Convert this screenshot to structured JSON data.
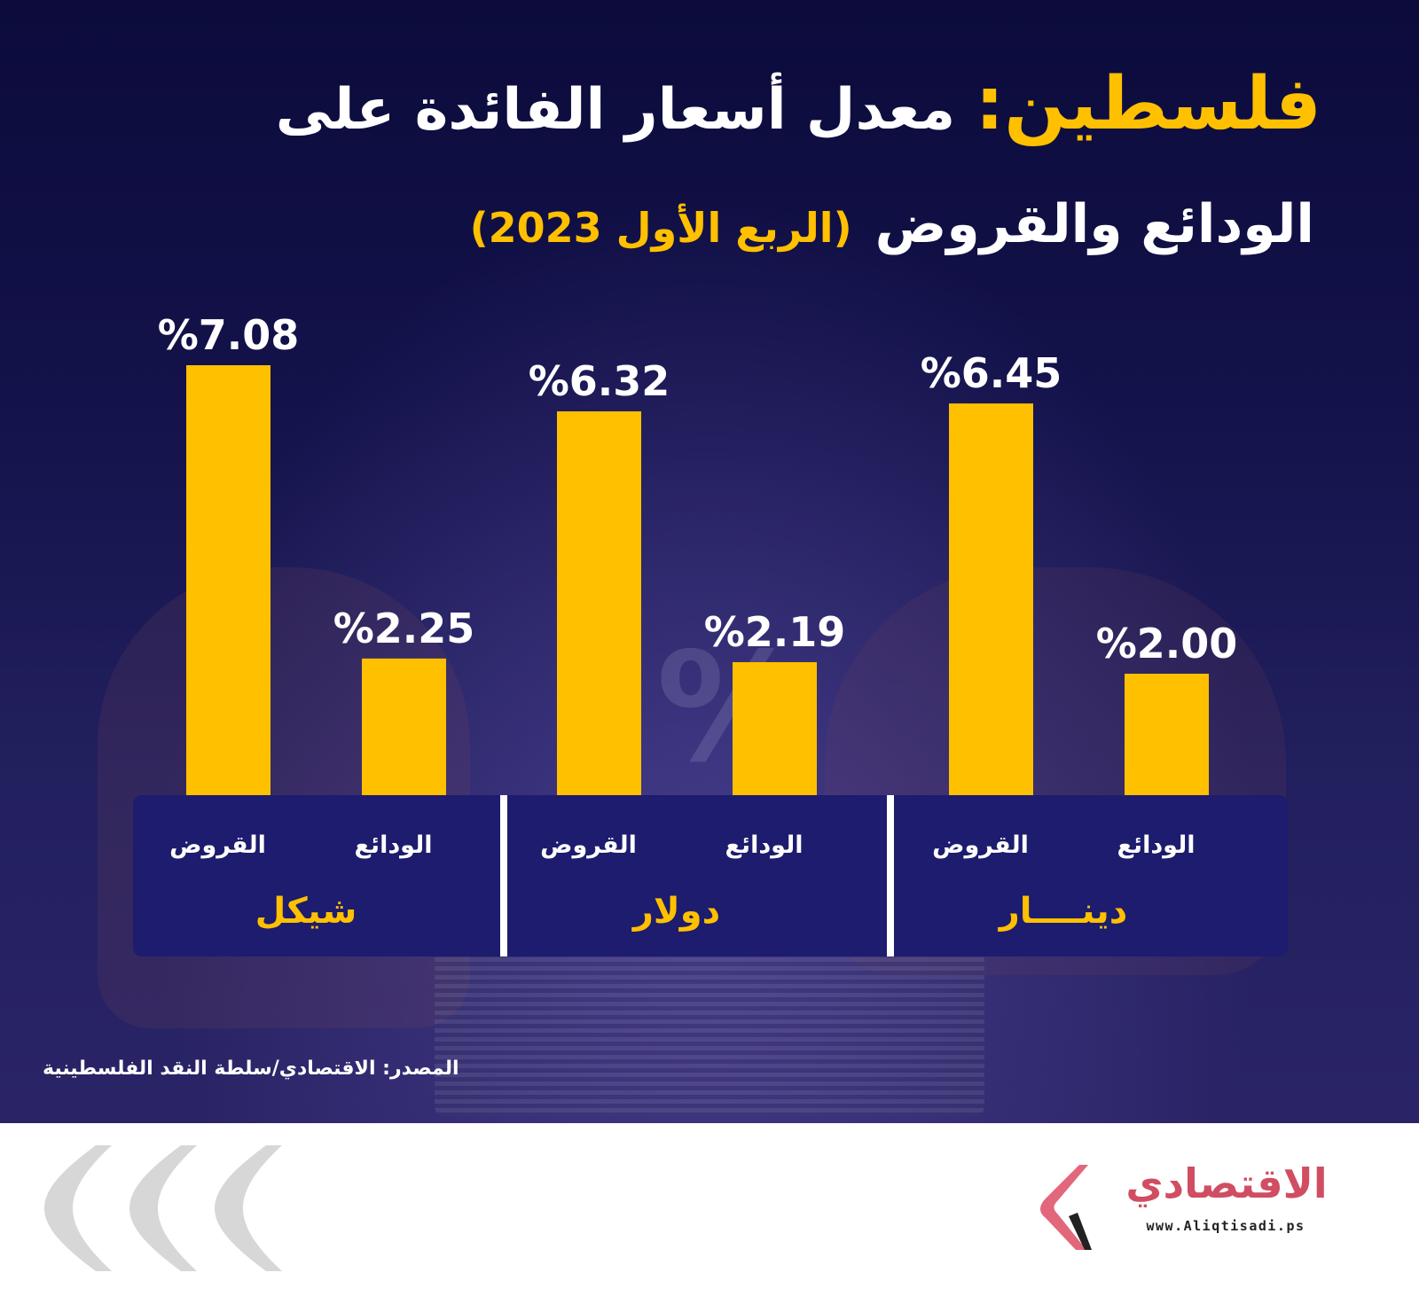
{
  "title": {
    "accent": "فلسطين:",
    "line1_rest": "معدل أسعار الفائدة على",
    "line2": "الودائع والقروض",
    "period": "(الربع الأول 2023)"
  },
  "source": "المصدر: الاقتصادي/سلطة النقد الفلسطينية",
  "logo": {
    "name": "الاقتصادي",
    "url": "www.Aliqtisadi.ps"
  },
  "colors": {
    "bar": "#ffc000",
    "background": "#13124a",
    "label_panel": "#1d1c6e",
    "currency_text": "#ffc000",
    "value_text": "#ffffff"
  },
  "chart_data": {
    "type": "bar",
    "groups": [
      {
        "name": "شيكل",
        "bars": [
          {
            "name": "القروض",
            "value": 7.08,
            "label": "%7.08"
          },
          {
            "name": "الودائع",
            "value": 2.25,
            "label": "%2.25"
          }
        ]
      },
      {
        "name": "دولار",
        "bars": [
          {
            "name": "القروض",
            "value": 6.32,
            "label": "%6.32"
          },
          {
            "name": "الودائع",
            "value": 2.19,
            "label": "%2.19"
          }
        ]
      },
      {
        "name": "دينــــار",
        "bars": [
          {
            "name": "القروض",
            "value": 6.45,
            "label": "%6.45"
          },
          {
            "name": "الودائع",
            "value": 2.0,
            "label": "%2.00"
          }
        ]
      }
    ],
    "unit": "%",
    "ylim": [
      0,
      7.08
    ],
    "grid": false,
    "legend": "none"
  }
}
